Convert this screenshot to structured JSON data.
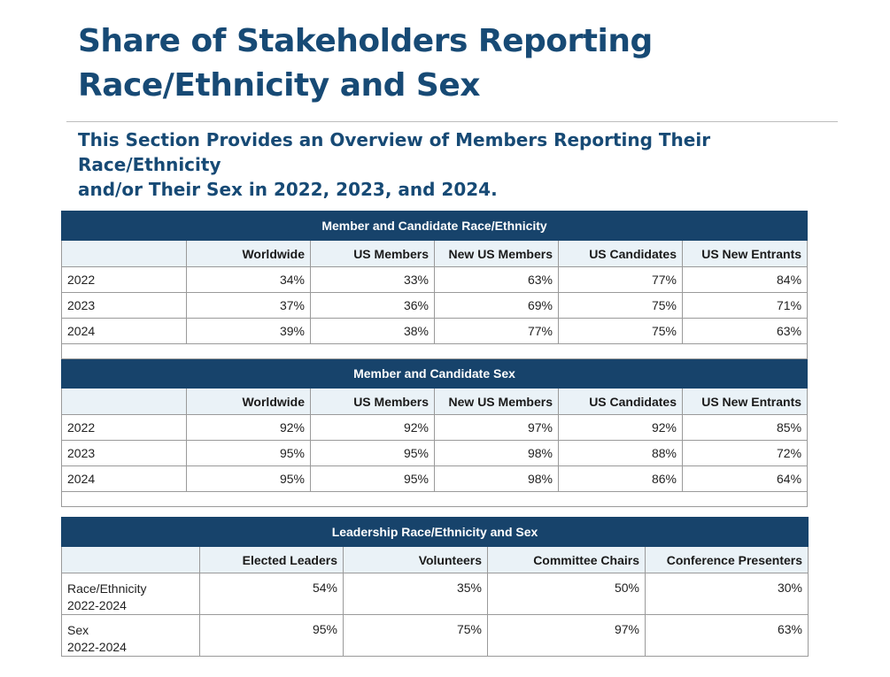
{
  "title_line1": "Share of Stakeholders Reporting",
  "title_line2": "Race/Ethnicity and Sex",
  "subtitle_line1": "This Section Provides an Overview of Members Reporting Their Race/Ethnicity",
  "subtitle_line2": "and/or Their Sex in 2022, 2023, and 2024.",
  "race_table": {
    "heading": "Member and Candidate Race/Ethnicity",
    "columns": [
      "Worldwide",
      "US Members",
      "New US Members",
      "US Candidates",
      "US New Entrants"
    ],
    "rows": [
      {
        "label": "2022",
        "values": [
          "34%",
          "33%",
          "63%",
          "77%",
          "84%"
        ]
      },
      {
        "label": "2023",
        "values": [
          "37%",
          "36%",
          "69%",
          "75%",
          "71%"
        ]
      },
      {
        "label": "2024",
        "values": [
          "39%",
          "38%",
          "77%",
          "75%",
          "63%"
        ]
      }
    ]
  },
  "sex_table": {
    "heading": "Member and Candidate Sex",
    "columns": [
      "Worldwide",
      "US Members",
      "New US Members",
      "US Candidates",
      "US New Entrants"
    ],
    "rows": [
      {
        "label": "2022",
        "values": [
          "92%",
          "92%",
          "97%",
          "92%",
          "85%"
        ]
      },
      {
        "label": "2023",
        "values": [
          "95%",
          "95%",
          "98%",
          "88%",
          "72%"
        ]
      },
      {
        "label": "2024",
        "values": [
          "95%",
          "95%",
          "98%",
          "86%",
          "64%"
        ]
      }
    ]
  },
  "leadership_table": {
    "heading": "Leadership Race/Ethnicity and Sex",
    "columns": [
      "Elected Leaders",
      "Volunteers",
      "Committee Chairs",
      "Conference Presenters"
    ],
    "rows": [
      {
        "label": "Race/Ethnicity",
        "sublabel": "2022-2024",
        "values": [
          "54%",
          "35%",
          "50%",
          "30%"
        ]
      },
      {
        "label": "Sex",
        "sublabel": "2022-2024",
        "values": [
          "95%",
          "75%",
          "97%",
          "63%"
        ]
      }
    ]
  }
}
